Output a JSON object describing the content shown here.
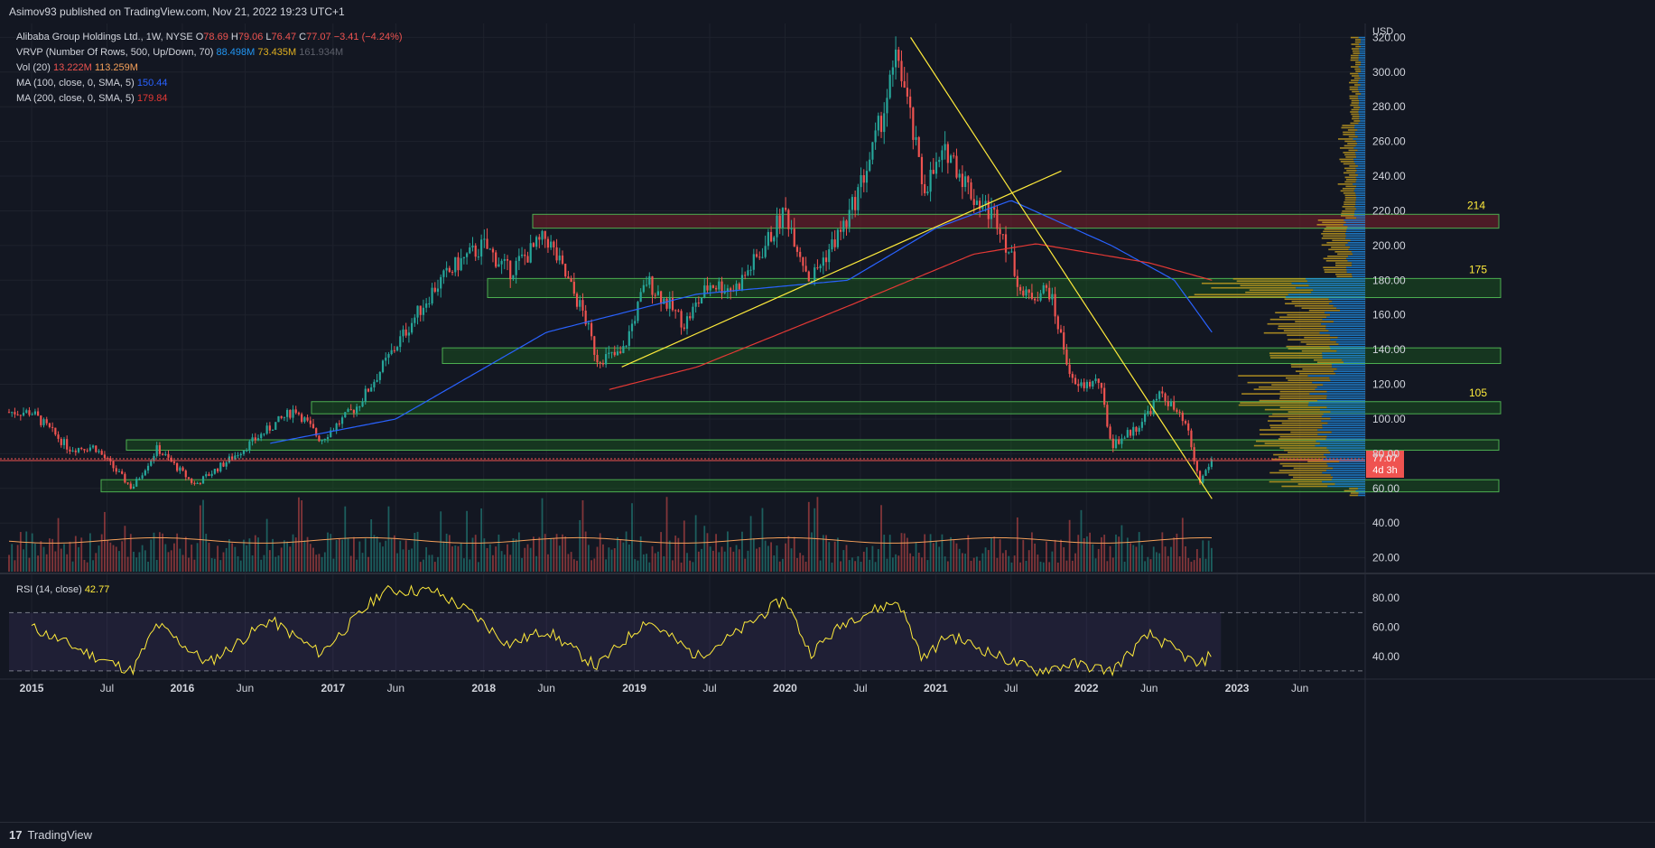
{
  "header": {
    "published": "Asimov93 published on TradingView.com, Nov 21, 2022 19:23 UTC+1"
  },
  "legend": {
    "symbol": "Alibaba Group Holdings Ltd., 1W, NYSE",
    "o_label": "O",
    "o": "78.69",
    "h_label": "H",
    "h": "79.06",
    "l_label": "L",
    "l": "76.47",
    "c_label": "C",
    "c": "77.07",
    "change": "−3.41 (−4.24%)",
    "vrvp_label": "VRVP (Number Of Rows, 500, Up/Down, 70)",
    "vrvp_up": "88.498M",
    "vrvp_down": "73.435M",
    "vrvp_total": "161.934M",
    "vol_label": "Vol (20)",
    "vol_val": "13.222M",
    "vol_ma": "113.259M",
    "ma100_label": "MA (100, close, 0, SMA, 5)",
    "ma100_val": "150.44",
    "ma200_label": "MA (200, close, 0, SMA, 5)",
    "ma200_val": "179.84",
    "rsi_label": "RSI (14, close)",
    "rsi_val": "42.77"
  },
  "price_axis": {
    "currency": "USD",
    "ticks": [
      "320.00",
      "300.00",
      "280.00",
      "260.00",
      "240.00",
      "220.00",
      "200.00",
      "180.00",
      "160.00",
      "140.00",
      "120.00",
      "100.00",
      "80.00",
      "60.00",
      "40.00",
      "20.00"
    ],
    "last_price": "77.07",
    "countdown": "4d 3h"
  },
  "rsi_axis": {
    "ticks": [
      "80.00",
      "60.00",
      "40.00"
    ]
  },
  "time_axis": {
    "labels": [
      "2015",
      "Jul",
      "2016",
      "Jun",
      "2017",
      "Jun",
      "2018",
      "Jun",
      "2019",
      "Jul",
      "2020",
      "Jul",
      "2021",
      "Jul",
      "2022",
      "Jun",
      "2023",
      "Jun"
    ]
  },
  "zone_labels": [
    "214",
    "175",
    "105"
  ],
  "colors": {
    "bg": "#131722",
    "up": "#26a69a",
    "down": "#ef5350",
    "ma100": "#2962ff",
    "ma200": "#e53935",
    "trendline": "#ffeb3b",
    "zone_green": "#1b5e20",
    "zone_red": "#7b1f2a",
    "rsi": "#ffeb3b",
    "vrvp_up": "#2196f3",
    "vrvp_down": "#c8a020"
  },
  "branding": "TradingView",
  "chart_data": {
    "type": "candlestick",
    "title": "Alibaba Group Holdings Ltd., 1W, NYSE",
    "ylabel": "USD",
    "ylim": [
      12,
      328
    ],
    "key_points": [
      {
        "date": "2015-01",
        "close": 104
      },
      {
        "date": "2015-04",
        "close": 83
      },
      {
        "date": "2015-06",
        "close": 84
      },
      {
        "date": "2015-09",
        "close": 60
      },
      {
        "date": "2015-11",
        "close": 83
      },
      {
        "date": "2016-02",
        "close": 62
      },
      {
        "date": "2016-05",
        "close": 78
      },
      {
        "date": "2016-08",
        "close": 95
      },
      {
        "date": "2016-10",
        "close": 106
      },
      {
        "date": "2016-12",
        "close": 88
      },
      {
        "date": "2017-03",
        "close": 108
      },
      {
        "date": "2017-06",
        "close": 142
      },
      {
        "date": "2017-09",
        "close": 175
      },
      {
        "date": "2017-11",
        "close": 190
      },
      {
        "date": "2018-01",
        "close": 200
      },
      {
        "date": "2018-03",
        "close": 185
      },
      {
        "date": "2018-06",
        "close": 205
      },
      {
        "date": "2018-09",
        "close": 160
      },
      {
        "date": "2018-10",
        "close": 135
      },
      {
        "date": "2018-12",
        "close": 137
      },
      {
        "date": "2019-02",
        "close": 180
      },
      {
        "date": "2019-05",
        "close": 155
      },
      {
        "date": "2019-07",
        "close": 178
      },
      {
        "date": "2019-09",
        "close": 175
      },
      {
        "date": "2019-11",
        "close": 195
      },
      {
        "date": "2020-01",
        "close": 220
      },
      {
        "date": "2020-03",
        "close": 180
      },
      {
        "date": "2020-06",
        "close": 215
      },
      {
        "date": "2020-08",
        "close": 255
      },
      {
        "date": "2020-10",
        "close": 310
      },
      {
        "date": "2020-12",
        "close": 233
      },
      {
        "date": "2021-02",
        "close": 255
      },
      {
        "date": "2021-04",
        "close": 228
      },
      {
        "date": "2021-06",
        "close": 215
      },
      {
        "date": "2021-08",
        "close": 170
      },
      {
        "date": "2021-10",
        "close": 175
      },
      {
        "date": "2021-12",
        "close": 118
      },
      {
        "date": "2022-02",
        "close": 122
      },
      {
        "date": "2022-03",
        "close": 85
      },
      {
        "date": "2022-05",
        "close": 95
      },
      {
        "date": "2022-07",
        "close": 115
      },
      {
        "date": "2022-09",
        "close": 95
      },
      {
        "date": "2022-10",
        "close": 63
      },
      {
        "date": "2022-11",
        "close": 77
      }
    ],
    "zones": [
      {
        "low": 210,
        "high": 218,
        "color": "red",
        "label": "214"
      },
      {
        "low": 170,
        "high": 181,
        "color": "green",
        "label": "175"
      },
      {
        "low": 132,
        "high": 141,
        "color": "green"
      },
      {
        "low": 103,
        "high": 110,
        "color": "green",
        "label": "105"
      },
      {
        "low": 82,
        "high": 88,
        "color": "green"
      },
      {
        "low": 58,
        "high": 65,
        "color": "green"
      }
    ],
    "ma100_points": [
      {
        "date": "2016-08",
        "value": 86
      },
      {
        "date": "2017-06",
        "value": 100
      },
      {
        "date": "2018-06",
        "value": 150
      },
      {
        "date": "2019-06",
        "value": 172
      },
      {
        "date": "2020-06",
        "value": 180
      },
      {
        "date": "2021-01",
        "value": 210
      },
      {
        "date": "2021-07",
        "value": 226
      },
      {
        "date": "2022-03",
        "value": 200
      },
      {
        "date": "2022-08",
        "value": 180
      },
      {
        "date": "2022-11",
        "value": 150
      }
    ],
    "ma200_points": [
      {
        "date": "2018-11",
        "value": 117
      },
      {
        "date": "2019-06",
        "value": 130
      },
      {
        "date": "2020-06",
        "value": 165
      },
      {
        "date": "2021-04",
        "value": 195
      },
      {
        "date": "2021-09",
        "value": 201
      },
      {
        "date": "2022-06",
        "value": 190
      },
      {
        "date": "2022-11",
        "value": 180
      }
    ],
    "trendlines": [
      {
        "from": {
          "date": "2018-12",
          "value": 130
        },
        "to": {
          "date": "2021-11",
          "value": 243
        }
      },
      {
        "from": {
          "date": "2020-11",
          "value": 320
        },
        "to": {
          "date": "2022-11",
          "value": 54
        }
      }
    ],
    "volume_ma_approx": 30,
    "rsi": {
      "period": 14,
      "last": 42.77,
      "levels": [
        70,
        30
      ],
      "ylim": [
        25,
        95
      ],
      "key_points": [
        {
          "date": "2015-01",
          "value": 60
        },
        {
          "date": "2015-06",
          "value": 40
        },
        {
          "date": "2015-09",
          "value": 30
        },
        {
          "date": "2015-11",
          "value": 62
        },
        {
          "date": "2016-03",
          "value": 35
        },
        {
          "date": "2016-08",
          "value": 65
        },
        {
          "date": "2016-12",
          "value": 42
        },
        {
          "date": "2017-05",
          "value": 85
        },
        {
          "date": "2017-09",
          "value": 85
        },
        {
          "date": "2017-12",
          "value": 70
        },
        {
          "date": "2018-03",
          "value": 48
        },
        {
          "date": "2018-06",
          "value": 58
        },
        {
          "date": "2018-10",
          "value": 33
        },
        {
          "date": "2019-02",
          "value": 65
        },
        {
          "date": "2019-06",
          "value": 40
        },
        {
          "date": "2019-09",
          "value": 55
        },
        {
          "date": "2020-01",
          "value": 80
        },
        {
          "date": "2020-03",
          "value": 42
        },
        {
          "date": "2020-06",
          "value": 65
        },
        {
          "date": "2020-10",
          "value": 78
        },
        {
          "date": "2020-12",
          "value": 38
        },
        {
          "date": "2021-02",
          "value": 55
        },
        {
          "date": "2021-06",
          "value": 40
        },
        {
          "date": "2021-09",
          "value": 30
        },
        {
          "date": "2021-12",
          "value": 35
        },
        {
          "date": "2022-03",
          "value": 30
        },
        {
          "date": "2022-06",
          "value": 55
        },
        {
          "date": "2022-08",
          "value": 45
        },
        {
          "date": "2022-10",
          "value": 33
        },
        {
          "date": "2022-11",
          "value": 42.77
        }
      ]
    }
  }
}
